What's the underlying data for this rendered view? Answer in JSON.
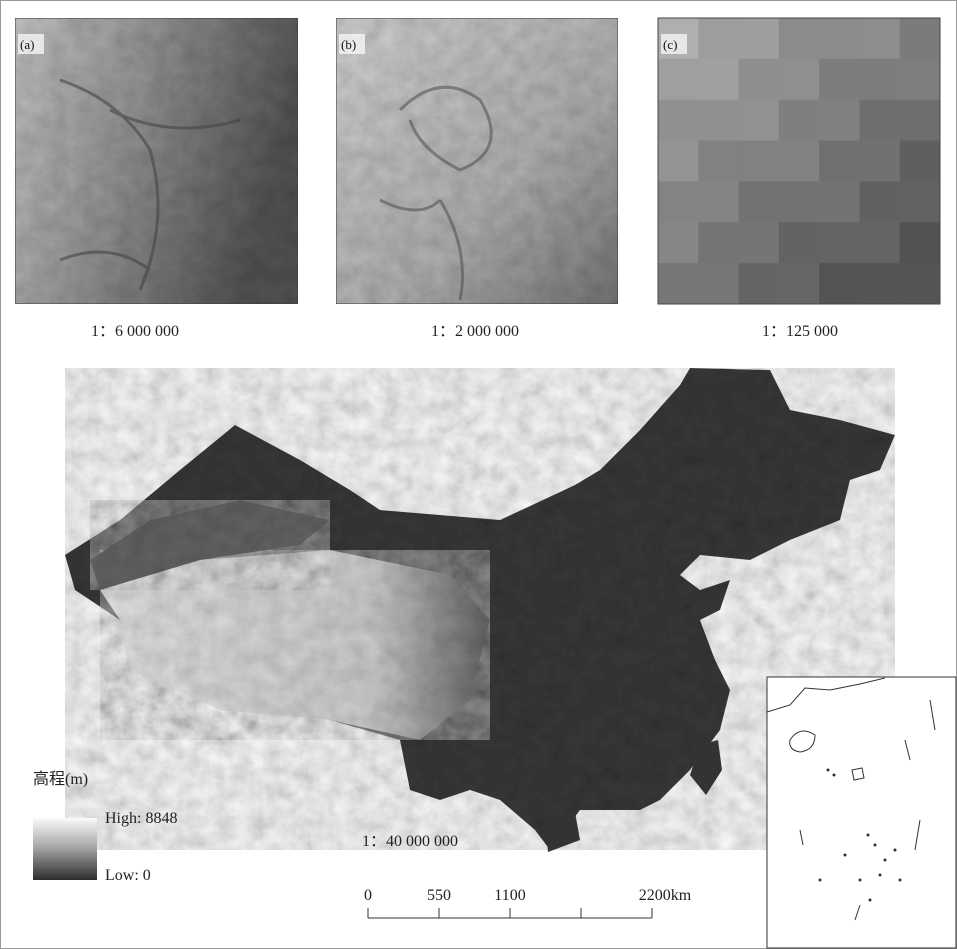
{
  "panels": [
    {
      "label": "(a)",
      "scale": "1：6 000 000"
    },
    {
      "label": "(b)",
      "scale": "1：2 000 000"
    },
    {
      "label": "(c)",
      "scale": "1：125 000"
    }
  ],
  "main_map": {
    "scale": "1：40 000 000"
  },
  "legend": {
    "title": "高程(m)",
    "high": "High: 8848",
    "low": "Low: 0"
  },
  "scale_bar": {
    "labels": [
      "0",
      "550",
      "1100",
      "2200km"
    ]
  }
}
